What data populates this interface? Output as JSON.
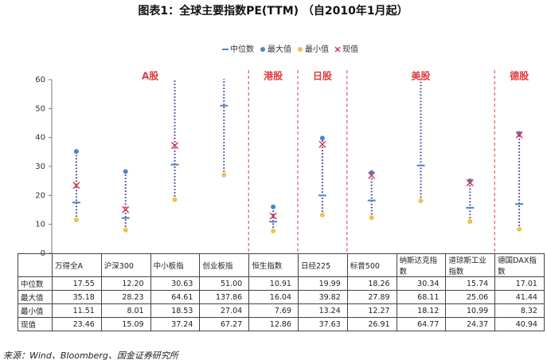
{
  "chart_data": {
    "type": "range",
    "title": "图表1：全球主要指数PE(TTM) （自2010年1月起）",
    "groups": [
      {
        "name": "A股",
        "categories": [
          "万得全A",
          "沪深300",
          "中小板指",
          "创业板指"
        ]
      },
      {
        "name": "港股",
        "categories": [
          "恒生指数"
        ]
      },
      {
        "name": "日股",
        "categories": [
          "日经225"
        ]
      },
      {
        "name": "美股",
        "categories": [
          "标普500",
          "纳斯达克指数",
          "道琼斯工业指数"
        ]
      },
      {
        "name": "德股",
        "categories": [
          "德国DAX指数"
        ]
      }
    ],
    "series": [
      {
        "name": "中位数",
        "color": "#4a86c8",
        "marker": "dash",
        "values": [
          17.55,
          12.2,
          30.63,
          51,
          10.91,
          19.99,
          18.26,
          30.34,
          15.74,
          17.01
        ],
        "value_labels": [
          "17.55",
          "12.20",
          "30.63",
          "51.00",
          "10.91",
          "19.99",
          "18.26",
          "30.34",
          "15.74",
          "17.01"
        ]
      },
      {
        "name": "最大值",
        "color": "#4a86c8",
        "marker": "dot",
        "values": [
          35.18,
          28.23,
          64.61,
          137.86,
          16.04,
          39.82,
          27.89,
          68.11,
          25.06,
          41.44
        ],
        "value_labels": [
          "35.18",
          "28.23",
          "64.61",
          "137.86",
          "16.04",
          "39.82",
          "27.89",
          "68.11",
          "25.06",
          "41.44"
        ]
      },
      {
        "name": "最小值",
        "color": "#f2c14e",
        "marker": "dot",
        "values": [
          11.51,
          8.01,
          18.53,
          27.04,
          7.69,
          13.24,
          12.27,
          18.12,
          10.99,
          8.32
        ],
        "value_labels": [
          "11.51",
          "8.01",
          "18.53",
          "27.04",
          "7.69",
          "13.24",
          "12.27",
          "18.12",
          "10.99",
          "8.32"
        ]
      },
      {
        "name": "现值",
        "color": "#d9364a",
        "marker": "cross",
        "values": [
          23.46,
          15.09,
          37.24,
          67.27,
          12.86,
          37.63,
          26.91,
          64.77,
          24.37,
          40.94
        ],
        "value_labels": [
          "23.46",
          "15.09",
          "37.24",
          "67.27",
          "12.86",
          "37.63",
          "26.91",
          "64.77",
          "24.37",
          "40.94"
        ]
      }
    ],
    "range_color": "#3b2a9c",
    "group_color": "#e23b3b",
    "ylim": [
      0,
      60
    ],
    "yticks": [
      0,
      10,
      20,
      30,
      40,
      50,
      60
    ],
    "source": "来源：Wind、Bloomberg、国金证券研究所"
  }
}
